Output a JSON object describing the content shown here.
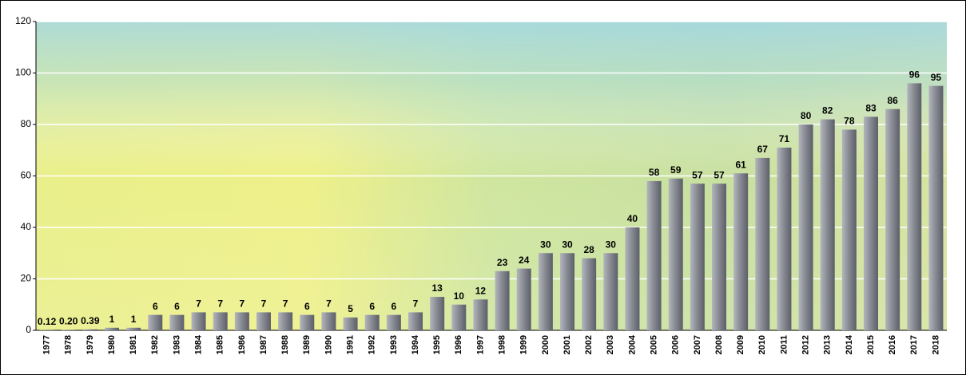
{
  "chart_data": {
    "type": "bar",
    "categories": [
      "1977",
      "1978",
      "1979",
      "1980",
      "1981",
      "1982",
      "1983",
      "1984",
      "1985",
      "1986",
      "1987",
      "1988",
      "1989",
      "1990",
      "1991",
      "1992",
      "1993",
      "1994",
      "1995",
      "1996",
      "1997",
      "1998",
      "1999",
      "2000",
      "2001",
      "2002",
      "2003",
      "2004",
      "2005",
      "2006",
      "2007",
      "2008",
      "2009",
      "2010",
      "2011",
      "2012",
      "2013",
      "2014",
      "2015",
      "2016",
      "2017",
      "2018"
    ],
    "values": [
      0.12,
      0.2,
      0.39,
      1,
      1,
      6,
      6,
      7,
      7,
      7,
      7,
      7,
      6,
      7,
      5,
      6,
      6,
      7,
      13,
      10,
      12,
      23,
      24,
      30,
      30,
      28,
      30,
      40,
      58,
      59,
      57,
      57,
      61,
      67,
      71,
      80,
      82,
      78,
      83,
      86,
      96,
      95
    ],
    "value_labels": [
      "0.12",
      "0.20",
      "0.39",
      "1",
      "1",
      "6",
      "6",
      "7",
      "7",
      "7",
      "7",
      "7",
      "6",
      "7",
      "5",
      "6",
      "6",
      "7",
      "13",
      "10",
      "12",
      "23",
      "24",
      "30",
      "30",
      "28",
      "30",
      "40",
      "58",
      "59",
      "57",
      "57",
      "61",
      "67",
      "71",
      "80",
      "82",
      "78",
      "83",
      "86",
      "96",
      "95"
    ],
    "color": "#8a8c95",
    "ylim": [
      0,
      120
    ],
    "yticks": [
      0,
      20,
      40,
      60,
      80,
      100,
      120
    ],
    "grid": true
  }
}
